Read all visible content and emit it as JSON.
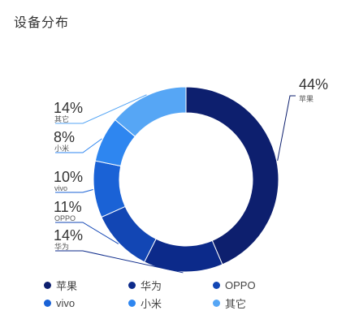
{
  "title": "设备分布",
  "chart_data": {
    "type": "pie",
    "donut": true,
    "title": "设备分布",
    "legend_position": "bottom",
    "categories": [
      "苹果",
      "华为",
      "OPPO",
      "vivo",
      "小米",
      "其它"
    ],
    "values": [
      44,
      14,
      11,
      10,
      8,
      14
    ],
    "labels": [
      "44%",
      "14%",
      "11%",
      "10%",
      "8%",
      "14%"
    ],
    "colors": [
      "#0d1f6e",
      "#0c2a8a",
      "#1246b4",
      "#1a62d6",
      "#2e86f0",
      "#56a6f5"
    ]
  }
}
